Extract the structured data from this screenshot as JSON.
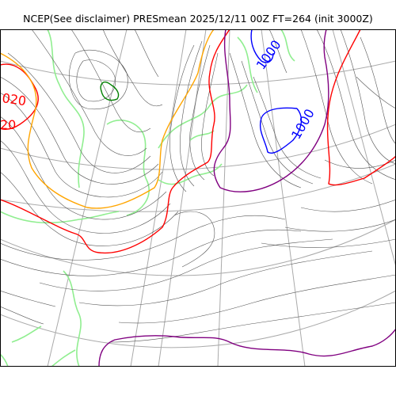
{
  "title": "NCEP(See disclaimer) PRESmean 2025/12/11 00Z FT=264 (init 3000Z)",
  "contour_labels": {
    "low_upper": "1000",
    "low_lower": "1000",
    "high_upper": "020",
    "high_lower": "20"
  },
  "colors": {
    "isobar_1000": "#0000ff",
    "isobar_1020": "#ff0000",
    "isobar_purple": "#800080",
    "isobar_orange": "#ffa500",
    "isobar_green": "#008000",
    "coastline": "#90ee90",
    "isobar_other": "#555555",
    "graticule": "#aaaaaa"
  }
}
